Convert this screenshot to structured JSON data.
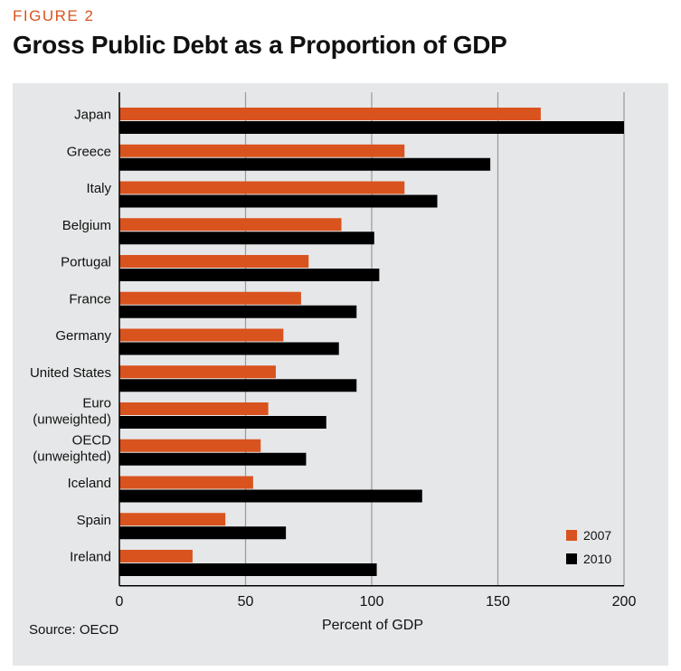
{
  "figure_label": "FIGURE 2",
  "title": "Gross Public Debt as a Proportion of GDP",
  "source": "Source: OECD",
  "colors": {
    "series_2007": "#d9531e",
    "series_2010": "#000000",
    "grid": "#9a9a9a",
    "panel": "#e6e7e8"
  },
  "chart_data": {
    "type": "bar",
    "orientation": "horizontal",
    "title": "Gross Public Debt as a Proportion of GDP",
    "xlabel": "Percent of GDP",
    "ylabel": "",
    "xlim": [
      0,
      200
    ],
    "xticks": [
      0,
      50,
      100,
      150,
      200
    ],
    "grid": true,
    "legend": "bottom-right",
    "categories": [
      [
        "Japan"
      ],
      [
        "Greece"
      ],
      [
        "Italy"
      ],
      [
        "Belgium"
      ],
      [
        "Portugal"
      ],
      [
        "France"
      ],
      [
        "Germany"
      ],
      [
        "United States"
      ],
      [
        "Euro",
        "(unweighted)"
      ],
      [
        "OECD",
        "(unweighted)"
      ],
      [
        "Iceland"
      ],
      [
        "Spain"
      ],
      [
        "Ireland"
      ]
    ],
    "series": [
      {
        "name": "2007",
        "values": [
          167,
          113,
          113,
          88,
          75,
          72,
          65,
          62,
          59,
          56,
          53,
          42,
          29
        ]
      },
      {
        "name": "2010",
        "values": [
          200,
          147,
          126,
          101,
          103,
          94,
          87,
          94,
          82,
          74,
          120,
          66,
          102
        ]
      }
    ]
  }
}
